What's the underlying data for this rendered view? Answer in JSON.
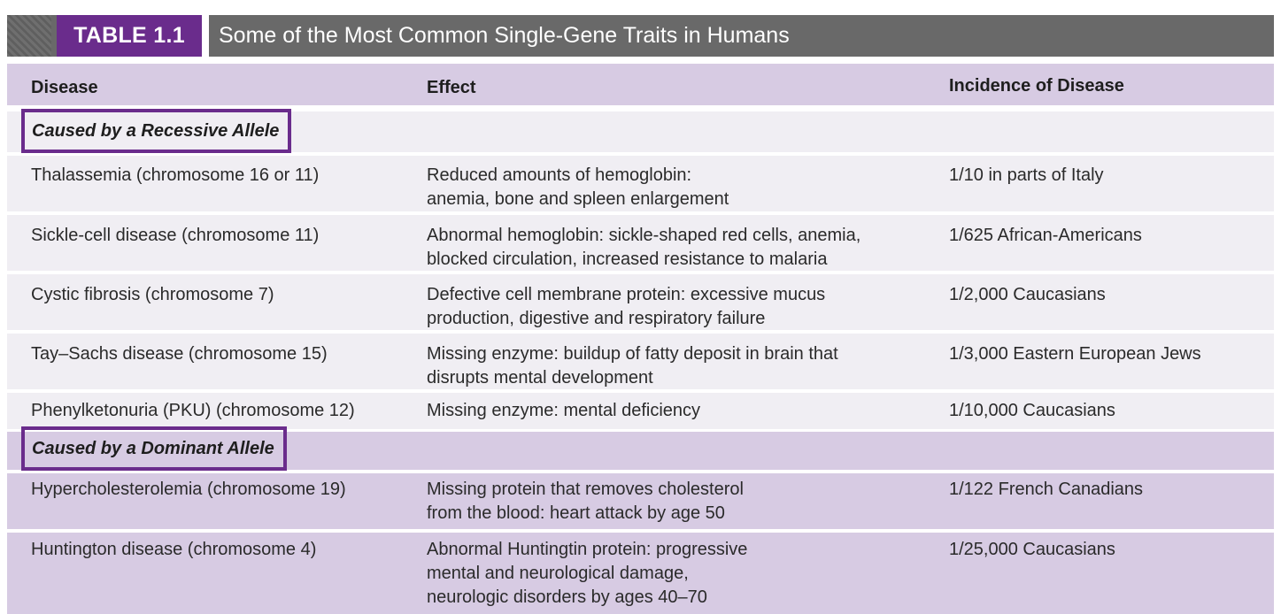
{
  "header": {
    "table_label": "TABLE 1.1",
    "table_title": "Some of the Most Common Single-Gene Traits in Humans"
  },
  "columns": {
    "disease": "Disease",
    "effect": "Effect",
    "incidence": "Incidence of Disease"
  },
  "sections": [
    {
      "label": "Caused by a Recessive Allele",
      "rows": [
        {
          "disease": "Thalassemia (chromosome 16 or 11)",
          "effect": [
            "Reduced amounts of hemoglobin:",
            "anemia, bone and spleen enlargement"
          ],
          "incidence": "1/10 in parts of Italy"
        },
        {
          "disease": "Sickle-cell disease (chromosome 11)",
          "effect": [
            "Abnormal hemoglobin: sickle-shaped red cells, anemia,",
            "blocked circulation, increased resistance to malaria"
          ],
          "incidence": "1/625 African-Americans"
        },
        {
          "disease": "Cystic fibrosis (chromosome 7)",
          "effect": [
            "Defective cell membrane protein: excessive mucus",
            "production, digestive and respiratory failure"
          ],
          "incidence": "1/2,000 Caucasians"
        },
        {
          "disease": "Tay–Sachs disease (chromosome 15)",
          "effect": [
            "Missing enzyme: buildup of fatty deposit in brain that",
            "disrupts mental development"
          ],
          "incidence": "1/3,000 Eastern European Jews"
        },
        {
          "disease": "Phenylketonuria (PKU) (chromosome 12)",
          "effect": [
            "Missing enzyme: mental deficiency"
          ],
          "incidence": "1/10,000 Caucasians"
        }
      ]
    },
    {
      "label": "Caused by a Dominant Allele",
      "rows": [
        {
          "disease": "Hypercholesterolemia (chromosome 19)",
          "effect": [
            "Missing protein that removes cholesterol",
            "from the blood: heart attack by age 50"
          ],
          "incidence": "1/122 French Canadians"
        },
        {
          "disease": "Huntington disease (chromosome 4)",
          "effect": [
            "Abnormal Huntingtin protein: progressive",
            "mental and neurological damage,",
            "neurologic disorders by ages 40–70"
          ],
          "incidence": "1/25,000 Caucasians"
        }
      ]
    }
  ]
}
